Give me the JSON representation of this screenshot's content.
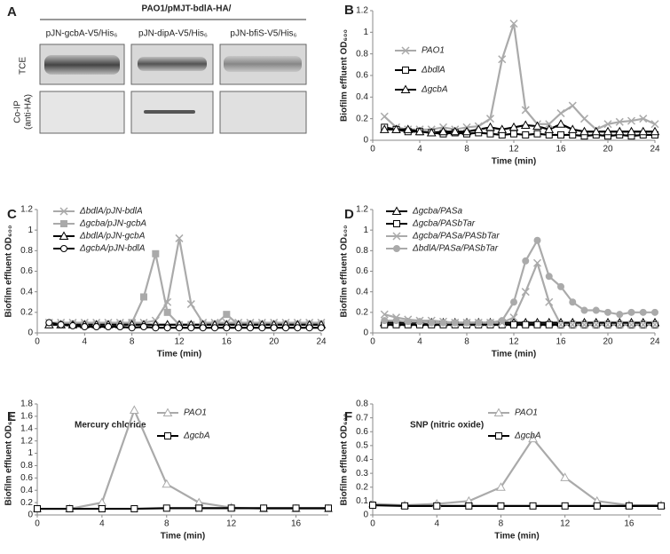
{
  "blot": {
    "panel": "A",
    "title": "PAO1/pMJT-bdlA-HA/",
    "lanes": [
      "pJN-gcbA-V5/His₆",
      "pJN-dipA-V5/His₆",
      "pJN-bfiS-V5/His₆"
    ],
    "rows": [
      "TCE",
      "Co-IP",
      "(anti-HA)"
    ]
  },
  "chart_data": [
    {
      "type": "line",
      "panel": "B",
      "xlabel": "Time (min)",
      "ylabel": "Biofilm effluent OD₆₀₀",
      "xlim": [
        0,
        24
      ],
      "xticks": [
        0,
        4,
        8,
        12,
        16,
        20,
        24
      ],
      "ylim": [
        0,
        1.2
      ],
      "yticks": [
        0,
        0.2,
        0.4,
        0.6,
        0.8,
        1,
        1.2
      ],
      "legend": "upper left",
      "x": [
        1,
        2,
        3,
        4,
        5,
        6,
        7,
        8,
        9,
        10,
        11,
        12,
        13,
        14,
        15,
        16,
        17,
        18,
        19,
        20,
        21,
        22,
        23,
        24
      ],
      "series": [
        {
          "name": "PAO1",
          "color": "#aaaaaa",
          "marker": "x",
          "values": [
            0.22,
            0.12,
            0.1,
            0.1,
            0.1,
            0.12,
            0.1,
            0.12,
            0.13,
            0.2,
            0.75,
            1.08,
            0.28,
            0.15,
            0.15,
            0.25,
            0.32,
            0.2,
            0.1,
            0.15,
            0.17,
            0.18,
            0.2,
            0.15
          ]
        },
        {
          "name": "ΔbdlA",
          "color": "#000000",
          "marker": "square",
          "values": [
            0.12,
            0.1,
            0.08,
            0.08,
            0.07,
            0.06,
            0.07,
            0.06,
            0.07,
            0.06,
            0.05,
            0.06,
            0.05,
            0.06,
            0.05,
            0.05,
            0.05,
            0.04,
            0.05,
            0.04,
            0.05,
            0.04,
            0.05,
            0.05
          ]
        },
        {
          "name": "ΔgcbA",
          "color": "#000000",
          "marker": "triangle",
          "values": [
            0.1,
            0.1,
            0.1,
            0.08,
            0.07,
            0.08,
            0.08,
            0.08,
            0.1,
            0.12,
            0.1,
            0.12,
            0.14,
            0.13,
            0.1,
            0.15,
            0.1,
            0.08,
            0.08,
            0.08,
            0.08,
            0.08,
            0.08,
            0.08
          ]
        }
      ]
    },
    {
      "type": "line",
      "panel": "C",
      "xlabel": "Time (min)",
      "ylabel": "Biofilm effluent OD₆₀₀",
      "xlim": [
        0,
        24
      ],
      "xticks": [
        0,
        4,
        8,
        12,
        16,
        20,
        24
      ],
      "ylim": [
        0,
        1.2
      ],
      "yticks": [
        0,
        0.2,
        0.4,
        0.6,
        0.8,
        1,
        1.2
      ],
      "legend": "upper left",
      "x": [
        1,
        2,
        3,
        4,
        5,
        6,
        7,
        8,
        9,
        10,
        11,
        12,
        13,
        14,
        15,
        16,
        17,
        18,
        19,
        20,
        21,
        22,
        23,
        24
      ],
      "series": [
        {
          "name": "ΔbdlA/pJN-bdlA",
          "color": "#aaaaaa",
          "marker": "x",
          "values": [
            0.1,
            0.1,
            0.1,
            0.1,
            0.1,
            0.1,
            0.1,
            0.1,
            0.1,
            0.12,
            0.3,
            0.92,
            0.28,
            0.1,
            0.1,
            0.1,
            0.1,
            0.1,
            0.1,
            0.1,
            0.1,
            0.1,
            0.1,
            0.1
          ]
        },
        {
          "name": "Δgcba/pJN-gcbA",
          "color": "#aaaaaa",
          "marker": "square",
          "filled": true,
          "values": [
            0.08,
            0.08,
            0.08,
            0.08,
            0.08,
            0.08,
            0.08,
            0.1,
            0.35,
            0.77,
            0.2,
            0.08,
            0.08,
            0.08,
            0.08,
            0.18,
            0.08,
            0.08,
            0.08,
            0.08,
            0.08,
            0.08,
            0.08,
            0.08
          ]
        },
        {
          "name": "ΔbdlA/pJN-gcbA",
          "color": "#000000",
          "marker": "triangle",
          "values": [
            0.08,
            0.08,
            0.08,
            0.08,
            0.08,
            0.08,
            0.08,
            0.08,
            0.08,
            0.08,
            0.08,
            0.08,
            0.08,
            0.08,
            0.08,
            0.08,
            0.08,
            0.08,
            0.08,
            0.08,
            0.08,
            0.08,
            0.08,
            0.08
          ]
        },
        {
          "name": "ΔgcbA/pJN-bdlA",
          "color": "#000000",
          "marker": "circle",
          "values": [
            0.1,
            0.08,
            0.07,
            0.06,
            0.06,
            0.06,
            0.06,
            0.05,
            0.06,
            0.05,
            0.05,
            0.05,
            0.05,
            0.05,
            0.05,
            0.05,
            0.05,
            0.05,
            0.05,
            0.05,
            0.05,
            0.05,
            0.05,
            0.05
          ]
        }
      ]
    },
    {
      "type": "line",
      "panel": "D",
      "xlabel": "Time (min)",
      "ylabel": "Biofilm effluent OD₆₀₀",
      "xlim": [
        0,
        24
      ],
      "xticks": [
        0,
        4,
        8,
        12,
        16,
        20,
        24
      ],
      "ylim": [
        0,
        1.2
      ],
      "yticks": [
        0,
        0.2,
        0.4,
        0.6,
        0.8,
        1,
        1.2
      ],
      "legend": "upper left",
      "x": [
        1,
        2,
        3,
        4,
        5,
        6,
        7,
        8,
        9,
        10,
        11,
        12,
        13,
        14,
        15,
        16,
        17,
        18,
        19,
        20,
        21,
        22,
        23,
        24
      ],
      "series": [
        {
          "name": "Δgcba/PASa",
          "color": "#000000",
          "marker": "triangle",
          "values": [
            0.1,
            0.1,
            0.1,
            0.1,
            0.1,
            0.1,
            0.1,
            0.1,
            0.1,
            0.1,
            0.1,
            0.1,
            0.1,
            0.1,
            0.1,
            0.1,
            0.1,
            0.1,
            0.1,
            0.1,
            0.1,
            0.1,
            0.1,
            0.1
          ]
        },
        {
          "name": "Δgcba/PASbTar",
          "color": "#000000",
          "marker": "square",
          "values": [
            0.08,
            0.08,
            0.08,
            0.08,
            0.08,
            0.08,
            0.08,
            0.08,
            0.08,
            0.08,
            0.08,
            0.08,
            0.08,
            0.08,
            0.08,
            0.08,
            0.08,
            0.08,
            0.08,
            0.08,
            0.08,
            0.08,
            0.08,
            0.08
          ]
        },
        {
          "name": "Δgcba/PASa/PASbTar",
          "color": "#aaaaaa",
          "marker": "x",
          "values": [
            0.18,
            0.15,
            0.13,
            0.12,
            0.12,
            0.11,
            0.1,
            0.1,
            0.1,
            0.1,
            0.1,
            0.15,
            0.4,
            0.68,
            0.3,
            0.08,
            0.08,
            0.08,
            0.08,
            0.08,
            0.08,
            0.08,
            0.08,
            0.08
          ]
        },
        {
          "name": "ΔbdlA/PASa/PASbTar",
          "color": "#aaaaaa",
          "marker": "circle",
          "filled": true,
          "values": [
            0.12,
            0.12,
            0.11,
            0.11,
            0.1,
            0.1,
            0.1,
            0.1,
            0.1,
            0.1,
            0.12,
            0.3,
            0.7,
            0.9,
            0.55,
            0.45,
            0.3,
            0.22,
            0.22,
            0.2,
            0.18,
            0.2,
            0.2,
            0.2
          ]
        }
      ]
    },
    {
      "type": "line",
      "panel": "E",
      "xlabel": "Time (min)",
      "ylabel": "Biofilm effluent OD₆₀₀",
      "annotation": "Mercury chloride",
      "xlim": [
        0,
        18
      ],
      "xticks": [
        0,
        4,
        8,
        12,
        16
      ],
      "ylim": [
        0,
        1.8
      ],
      "yticks": [
        0,
        0.2,
        0.4,
        0.6,
        0.8,
        1,
        1.2,
        1.4,
        1.6,
        1.8
      ],
      "legend": "upper right",
      "x": [
        0,
        2,
        4,
        6,
        8,
        10,
        12,
        14,
        16,
        18
      ],
      "series": [
        {
          "name": "PAO1",
          "color": "#aaaaaa",
          "marker": "triangle",
          "values": [
            0.1,
            0.1,
            0.2,
            1.7,
            0.5,
            0.2,
            0.12,
            0.1,
            0.1,
            0.1
          ]
        },
        {
          "name": "ΔgcbA",
          "color": "#000000",
          "marker": "square",
          "values": [
            0.1,
            0.1,
            0.1,
            0.1,
            0.11,
            0.11,
            0.11,
            0.11,
            0.11,
            0.11
          ]
        }
      ]
    },
    {
      "type": "line",
      "panel": "F",
      "xlabel": "Time (min)",
      "ylabel": "Biofilm effluent OD₆₀₀",
      "annotation": "SNP (nitric oxide)",
      "xlim": [
        0,
        18
      ],
      "xticks": [
        0,
        4,
        8,
        12,
        16
      ],
      "ylim": [
        0,
        0.8
      ],
      "yticks": [
        0,
        0.1,
        0.2,
        0.3,
        0.4,
        0.5,
        0.6,
        0.7,
        0.8
      ],
      "legend": "upper right",
      "x": [
        0,
        2,
        4,
        6,
        8,
        10,
        12,
        14,
        16,
        18
      ],
      "series": [
        {
          "name": "PAO1",
          "color": "#aaaaaa",
          "marker": "triangle",
          "values": [
            0.08,
            0.07,
            0.08,
            0.1,
            0.2,
            0.55,
            0.27,
            0.1,
            0.07,
            0.07
          ]
        },
        {
          "name": "ΔgcbA",
          "color": "#000000",
          "marker": "square",
          "values": [
            0.07,
            0.065,
            0.065,
            0.065,
            0.065,
            0.065,
            0.065,
            0.065,
            0.065,
            0.065
          ]
        }
      ]
    }
  ]
}
